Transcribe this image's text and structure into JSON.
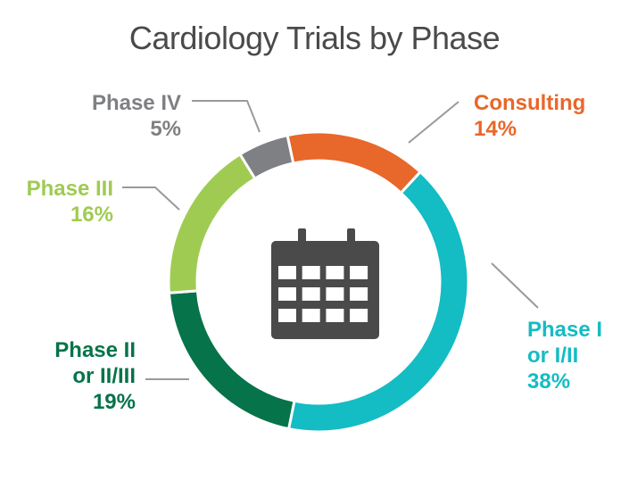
{
  "chart_data": {
    "type": "pie",
    "title": "Cardiology Trials by Phase",
    "categories": [
      "Consulting",
      "Phase I or I/II",
      "Phase II or II/III",
      "Phase III",
      "Phase IV"
    ],
    "values": [
      14,
      38,
      19,
      16,
      5
    ],
    "labels": [
      {
        "lines": [
          "Consulting"
        ],
        "value_text": "14%"
      },
      {
        "lines": [
          "Phase I",
          "or I/II"
        ],
        "value_text": "38%"
      },
      {
        "lines": [
          "Phase II",
          "or II/III"
        ],
        "value_text": "19%"
      },
      {
        "lines": [
          "Phase III"
        ],
        "value_text": "16%"
      },
      {
        "lines": [
          "Phase IV"
        ],
        "value_text": "5%"
      }
    ],
    "colors": [
      "#e8672a",
      "#14bcc4",
      "#06734a",
      "#9fcb53",
      "#7f8083"
    ],
    "center_icon": "calendar-icon",
    "legend": "none"
  }
}
